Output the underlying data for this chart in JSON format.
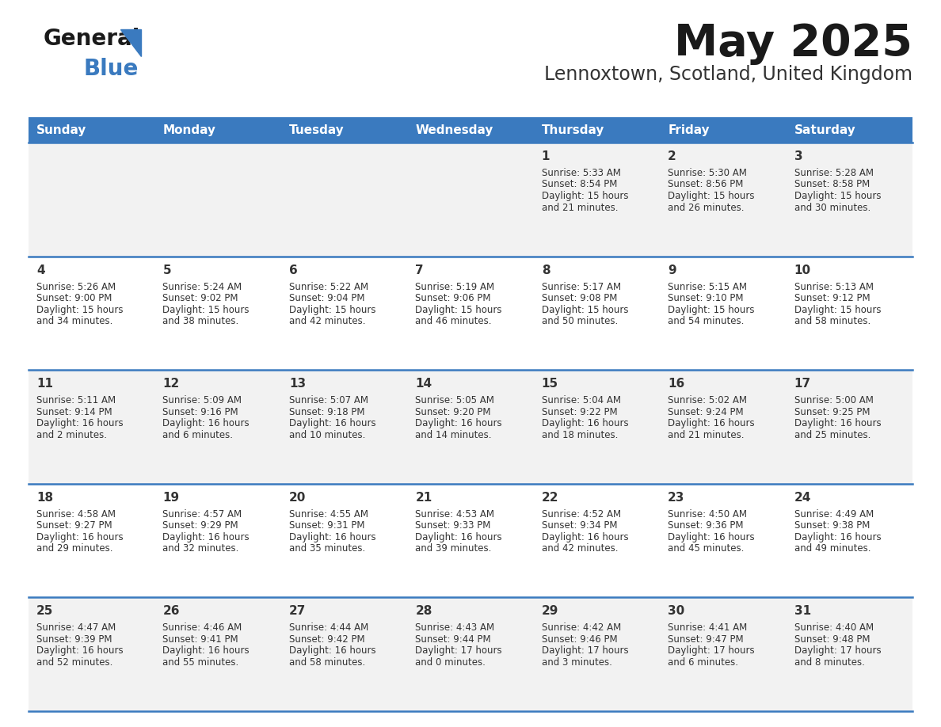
{
  "title": "May 2025",
  "subtitle": "Lennoxtown, Scotland, United Kingdom",
  "days_of_week": [
    "Sunday",
    "Monday",
    "Tuesday",
    "Wednesday",
    "Thursday",
    "Friday",
    "Saturday"
  ],
  "header_bg": "#3a7abf",
  "header_text": "#ffffff",
  "row_bg_odd": "#f2f2f2",
  "row_bg_even": "#ffffff",
  "divider_color": "#3a7abf",
  "text_color": "#333333",
  "calendar_data": [
    [
      {
        "day": "",
        "sunrise": "",
        "sunset": "",
        "daylight": ""
      },
      {
        "day": "",
        "sunrise": "",
        "sunset": "",
        "daylight": ""
      },
      {
        "day": "",
        "sunrise": "",
        "sunset": "",
        "daylight": ""
      },
      {
        "day": "",
        "sunrise": "",
        "sunset": "",
        "daylight": ""
      },
      {
        "day": "1",
        "sunrise": "5:33 AM",
        "sunset": "8:54 PM",
        "daylight": "15 hours and 21 minutes."
      },
      {
        "day": "2",
        "sunrise": "5:30 AM",
        "sunset": "8:56 PM",
        "daylight": "15 hours and 26 minutes."
      },
      {
        "day": "3",
        "sunrise": "5:28 AM",
        "sunset": "8:58 PM",
        "daylight": "15 hours and 30 minutes."
      }
    ],
    [
      {
        "day": "4",
        "sunrise": "5:26 AM",
        "sunset": "9:00 PM",
        "daylight": "15 hours and 34 minutes."
      },
      {
        "day": "5",
        "sunrise": "5:24 AM",
        "sunset": "9:02 PM",
        "daylight": "15 hours and 38 minutes."
      },
      {
        "day": "6",
        "sunrise": "5:22 AM",
        "sunset": "9:04 PM",
        "daylight": "15 hours and 42 minutes."
      },
      {
        "day": "7",
        "sunrise": "5:19 AM",
        "sunset": "9:06 PM",
        "daylight": "15 hours and 46 minutes."
      },
      {
        "day": "8",
        "sunrise": "5:17 AM",
        "sunset": "9:08 PM",
        "daylight": "15 hours and 50 minutes."
      },
      {
        "day": "9",
        "sunrise": "5:15 AM",
        "sunset": "9:10 PM",
        "daylight": "15 hours and 54 minutes."
      },
      {
        "day": "10",
        "sunrise": "5:13 AM",
        "sunset": "9:12 PM",
        "daylight": "15 hours and 58 minutes."
      }
    ],
    [
      {
        "day": "11",
        "sunrise": "5:11 AM",
        "sunset": "9:14 PM",
        "daylight": "16 hours and 2 minutes."
      },
      {
        "day": "12",
        "sunrise": "5:09 AM",
        "sunset": "9:16 PM",
        "daylight": "16 hours and 6 minutes."
      },
      {
        "day": "13",
        "sunrise": "5:07 AM",
        "sunset": "9:18 PM",
        "daylight": "16 hours and 10 minutes."
      },
      {
        "day": "14",
        "sunrise": "5:05 AM",
        "sunset": "9:20 PM",
        "daylight": "16 hours and 14 minutes."
      },
      {
        "day": "15",
        "sunrise": "5:04 AM",
        "sunset": "9:22 PM",
        "daylight": "16 hours and 18 minutes."
      },
      {
        "day": "16",
        "sunrise": "5:02 AM",
        "sunset": "9:24 PM",
        "daylight": "16 hours and 21 minutes."
      },
      {
        "day": "17",
        "sunrise": "5:00 AM",
        "sunset": "9:25 PM",
        "daylight": "16 hours and 25 minutes."
      }
    ],
    [
      {
        "day": "18",
        "sunrise": "4:58 AM",
        "sunset": "9:27 PM",
        "daylight": "16 hours and 29 minutes."
      },
      {
        "day": "19",
        "sunrise": "4:57 AM",
        "sunset": "9:29 PM",
        "daylight": "16 hours and 32 minutes."
      },
      {
        "day": "20",
        "sunrise": "4:55 AM",
        "sunset": "9:31 PM",
        "daylight": "16 hours and 35 minutes."
      },
      {
        "day": "21",
        "sunrise": "4:53 AM",
        "sunset": "9:33 PM",
        "daylight": "16 hours and 39 minutes."
      },
      {
        "day": "22",
        "sunrise": "4:52 AM",
        "sunset": "9:34 PM",
        "daylight": "16 hours and 42 minutes."
      },
      {
        "day": "23",
        "sunrise": "4:50 AM",
        "sunset": "9:36 PM",
        "daylight": "16 hours and 45 minutes."
      },
      {
        "day": "24",
        "sunrise": "4:49 AM",
        "sunset": "9:38 PM",
        "daylight": "16 hours and 49 minutes."
      }
    ],
    [
      {
        "day": "25",
        "sunrise": "4:47 AM",
        "sunset": "9:39 PM",
        "daylight": "16 hours and 52 minutes."
      },
      {
        "day": "26",
        "sunrise": "4:46 AM",
        "sunset": "9:41 PM",
        "daylight": "16 hours and 55 minutes."
      },
      {
        "day": "27",
        "sunrise": "4:44 AM",
        "sunset": "9:42 PM",
        "daylight": "16 hours and 58 minutes."
      },
      {
        "day": "28",
        "sunrise": "4:43 AM",
        "sunset": "9:44 PM",
        "daylight": "17 hours and 0 minutes."
      },
      {
        "day": "29",
        "sunrise": "4:42 AM",
        "sunset": "9:46 PM",
        "daylight": "17 hours and 3 minutes."
      },
      {
        "day": "30",
        "sunrise": "4:41 AM",
        "sunset": "9:47 PM",
        "daylight": "17 hours and 6 minutes."
      },
      {
        "day": "31",
        "sunrise": "4:40 AM",
        "sunset": "9:48 PM",
        "daylight": "17 hours and 8 minutes."
      }
    ]
  ],
  "fig_width": 11.88,
  "fig_height": 9.18,
  "dpi": 100
}
